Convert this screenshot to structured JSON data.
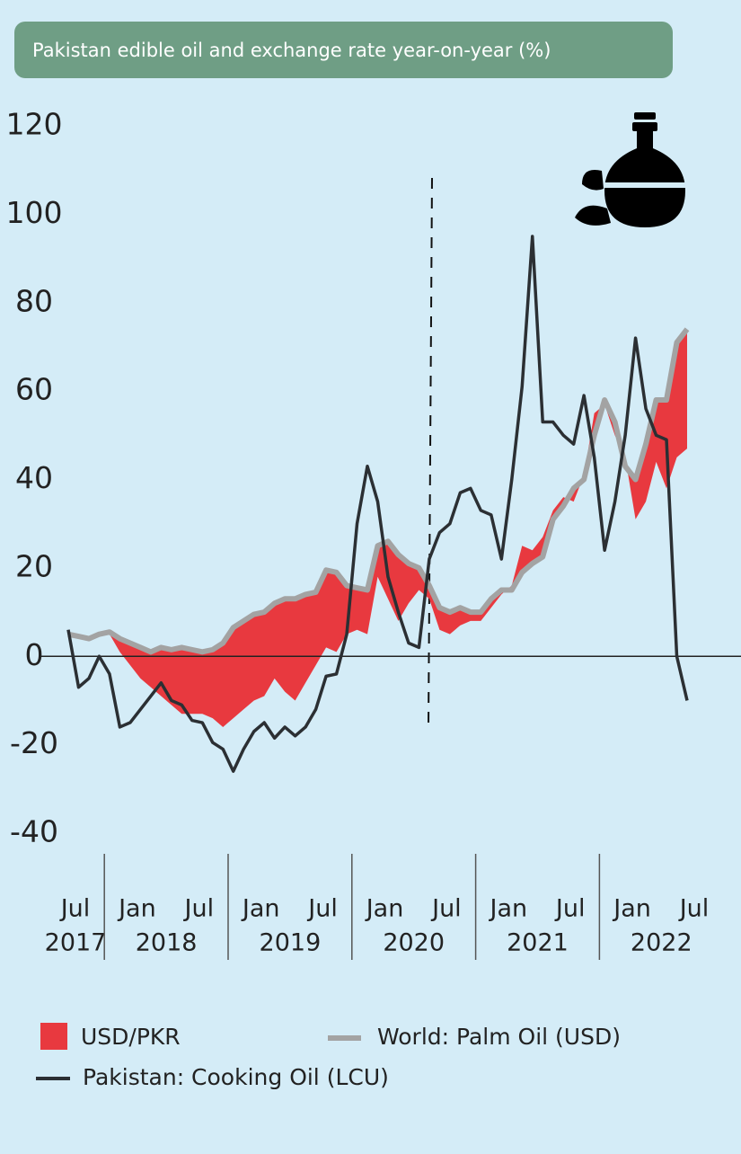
{
  "chart_data": {
    "type": "line",
    "title": "Pakistan edible oil and exchange rate year-on-year (%)",
    "x": [
      "2017-07",
      "2017-08",
      "2017-09",
      "2017-10",
      "2017-11",
      "2017-12",
      "2018-01",
      "2018-02",
      "2018-03",
      "2018-04",
      "2018-05",
      "2018-06",
      "2018-07",
      "2018-08",
      "2018-09",
      "2018-10",
      "2018-11",
      "2018-12",
      "2019-01",
      "2019-02",
      "2019-03",
      "2019-04",
      "2019-05",
      "2019-06",
      "2019-07",
      "2019-08",
      "2019-09",
      "2019-10",
      "2019-11",
      "2019-12",
      "2020-01",
      "2020-02",
      "2020-03",
      "2020-04",
      "2020-05",
      "2020-06",
      "2020-07",
      "2020-08",
      "2020-09",
      "2020-10",
      "2020-11",
      "2020-12",
      "2021-01",
      "2021-02",
      "2021-03",
      "2021-04",
      "2021-05",
      "2021-06",
      "2021-07",
      "2021-08",
      "2021-09",
      "2021-10",
      "2021-11",
      "2021-12",
      "2022-01",
      "2022-02",
      "2022-03",
      "2022-04",
      "2022-05",
      "2022-06",
      "2022-07"
    ],
    "series": [
      {
        "name": "USD/PKR",
        "type": "area",
        "stacked": true,
        "color": "#e8393f",
        "values": [
          0,
          0,
          0,
          0,
          -0.5,
          -3,
          -5,
          -7,
          -8,
          -11,
          -12.5,
          -15,
          -14.5,
          -14,
          -15.5,
          -19,
          -20.5,
          -20,
          -19.5,
          -19,
          -17,
          -21,
          -23,
          -20,
          -16.5,
          -17.5,
          -18,
          -11,
          -9.5,
          -10,
          -7,
          -13,
          -15,
          -9,
          -5,
          -3,
          -5,
          -5,
          -4,
          -2,
          -2,
          -2,
          -1,
          1,
          6,
          3,
          4.5,
          2,
          2,
          -3,
          1,
          5,
          -1,
          -3,
          2,
          -9,
          -13,
          -14,
          -20,
          -26,
          -27
        ]
      },
      {
        "name": "World: Palm Oil (USD)",
        "type": "line",
        "color": "#a3a3a3",
        "values": [
          5,
          4.5,
          4,
          5,
          5.5,
          4,
          3,
          2,
          1,
          2,
          1.5,
          2,
          1.5,
          1,
          1.5,
          3,
          6.5,
          8,
          9.5,
          10,
          12,
          13,
          13,
          14,
          14.5,
          19.5,
          19,
          16,
          15.5,
          15,
          25,
          26,
          23,
          21,
          20,
          16,
          11,
          10,
          11,
          10,
          10,
          13,
          15,
          15,
          19,
          21,
          22.5,
          31,
          34,
          38,
          40,
          50,
          58,
          53,
          43,
          40,
          48,
          58,
          58,
          71,
          74
        ]
      },
      {
        "name": "Pakistan: Cooking Oil (LCU)",
        "type": "line",
        "color": "#2b2f33",
        "values": [
          6,
          -7,
          -5,
          0,
          -4,
          -16,
          -15,
          -12,
          -9,
          -6,
          -10,
          -11,
          -14.5,
          -15,
          -19.5,
          -21,
          -26,
          -21,
          -17,
          -15,
          -18.5,
          -16,
          -18,
          -16,
          -12,
          -4.5,
          -4,
          5,
          30,
          43,
          35,
          18,
          10,
          3,
          2,
          22,
          28,
          30,
          37,
          38,
          33,
          32,
          22,
          40,
          61,
          95,
          53,
          53,
          50,
          48,
          59,
          45,
          24,
          35,
          50,
          72,
          56,
          50,
          49,
          0,
          -10
        ]
      }
    ],
    "ylim": [
      -40,
      120
    ],
    "yticks": [
      -40,
      -20,
      0,
      20,
      40,
      60,
      80,
      100,
      120
    ],
    "xticks": [
      {
        "value": "2017-07",
        "label": "Jul"
      },
      {
        "value": "2018-01",
        "label": "Jan"
      },
      {
        "value": "2018-07",
        "label": "Jul"
      },
      {
        "value": "2019-01",
        "label": "Jan"
      },
      {
        "value": "2019-07",
        "label": "Jul"
      },
      {
        "value": "2020-01",
        "label": "Jan"
      },
      {
        "value": "2020-07",
        "label": "Jul"
      },
      {
        "value": "2021-01",
        "label": "Jan"
      },
      {
        "value": "2021-07",
        "label": "Jul"
      },
      {
        "value": "2022-01",
        "label": "Jan"
      },
      {
        "value": "2022-07",
        "label": "Jul"
      }
    ],
    "xtick_groups": [
      {
        "value": "2017-07",
        "label": "2017"
      },
      {
        "value": "2018-01",
        "label": "2018"
      },
      {
        "value": "2019-01",
        "label": "2019"
      },
      {
        "value": "2020-01",
        "label": "2020"
      },
      {
        "value": "2021-01",
        "label": "2021"
      },
      {
        "value": "2022-01",
        "label": "2022"
      }
    ],
    "grid": false
  }
}
